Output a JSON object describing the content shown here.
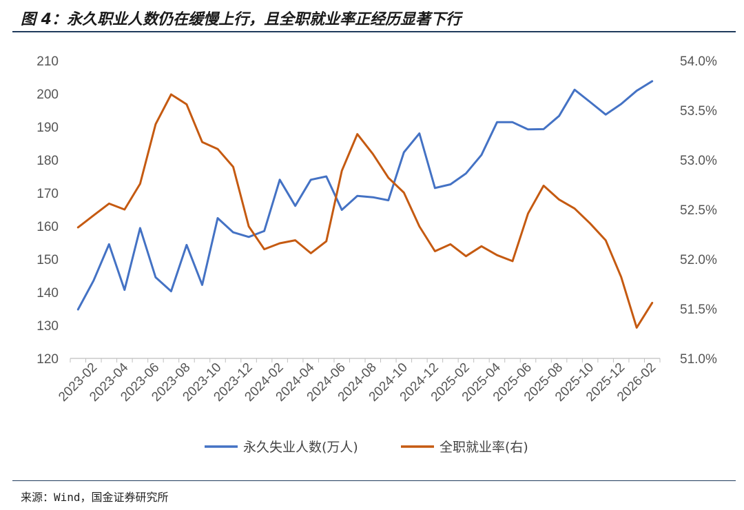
{
  "title": "图 4：永久职业人数仍在缓慢上行，且全职就业率正经历显著下行",
  "source": "来源：Wind，国金证券研究所",
  "chart_data": {
    "type": "line",
    "x": [
      "2023-01",
      "2023-02",
      "2023-03",
      "2023-04",
      "2023-05",
      "2023-06",
      "2023-07",
      "2023-08",
      "2023-09",
      "2023-10",
      "2023-11",
      "2023-12",
      "2024-01",
      "2024-02",
      "2024-03",
      "2024-04",
      "2024-05",
      "2024-06",
      "2024-07",
      "2024-08",
      "2024-09",
      "2024-10",
      "2024-11",
      "2024-12",
      "2025-01",
      "2025-02",
      "2025-03",
      "2025-04",
      "2025-05",
      "2025-06",
      "2025-07",
      "2025-08",
      "2025-09",
      "2025-10",
      "2025-11",
      "2025-12",
      "2026-01",
      "2026-02"
    ],
    "x_tick_labels": [
      "2023-02",
      "2023-04",
      "2023-06",
      "2023-08",
      "2023-10",
      "2023-12",
      "2024-02",
      "2024-04",
      "2024-06",
      "2024-08",
      "2024-10",
      "2024-12",
      "2025-02",
      "2025-04",
      "2025-06",
      "2025-08",
      "2025-10",
      "2025-12",
      "2026-02"
    ],
    "y_left": {
      "ylim": [
        120,
        210
      ],
      "ticks": [
        120,
        130,
        140,
        150,
        160,
        170,
        180,
        190,
        200,
        210
      ]
    },
    "y_right": {
      "ylim": [
        51.0,
        54.0
      ],
      "ticks": [
        "51.0%",
        "51.5%",
        "52.0%",
        "52.5%",
        "53.0%",
        "53.5%",
        "54.0%"
      ]
    },
    "legend_position": "bottom",
    "series": [
      {
        "name": "永久失业人数(万人)",
        "axis": "left",
        "color": "#4472c4",
        "values": [
          134.8,
          143.5,
          154.5,
          140.7,
          159.4,
          144.5,
          140.3,
          154.3,
          142.2,
          162.4,
          158.1,
          156.7,
          158.5,
          174.0,
          166.1,
          174.0,
          175.0,
          164.9,
          169.1,
          168.7,
          167.8,
          182.3,
          188.0,
          171.5,
          172.6,
          175.9,
          181.5,
          191.4,
          191.4,
          189.2,
          189.3,
          193.3,
          201.2,
          197.5,
          193.7,
          196.9,
          200.9,
          203.8
        ]
      },
      {
        "name": "全职就业率(右)",
        "axis": "right",
        "color": "#c55a11",
        "values": [
          52.32,
          52.44,
          52.56,
          52.5,
          52.76,
          53.36,
          53.66,
          53.56,
          53.18,
          53.11,
          52.93,
          52.33,
          52.1,
          52.16,
          52.19,
          52.06,
          52.18,
          52.89,
          53.26,
          53.06,
          52.82,
          52.67,
          52.33,
          52.08,
          52.15,
          52.03,
          52.13,
          52.04,
          51.98,
          52.46,
          52.74,
          52.6,
          52.51,
          52.36,
          52.19,
          51.82,
          51.31,
          51.56
        ]
      }
    ]
  }
}
